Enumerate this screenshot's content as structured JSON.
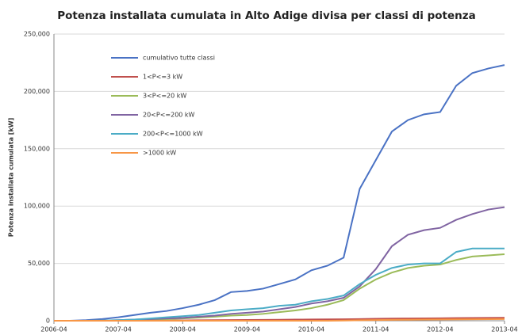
{
  "chart_data": {
    "type": "line",
    "title": "Potenza installata cumulata in Alto Adige divisa per classi di potenza",
    "y_label": "Potenza installata cumulata [kW]",
    "x": [
      "2006-04",
      "2006-07",
      "2006-10",
      "2007-01",
      "2007-04",
      "2007-07",
      "2007-10",
      "2008-01",
      "2008-04",
      "2008-07",
      "2008-10",
      "2009-01",
      "2009-04",
      "2009-07",
      "2009-10",
      "2010-01",
      "2010-04",
      "2010-07",
      "2010-10",
      "2011-01",
      "2011-04",
      "2011-07",
      "2011-10",
      "2012-01",
      "2012-04",
      "2012-07",
      "2012-10",
      "2013-01",
      "2013-04"
    ],
    "series": [
      {
        "name": "cumulativo tutte classi",
        "color": "#4a72c4",
        "values": [
          0,
          0,
          500,
          1500,
          3000,
          5000,
          7000,
          8500,
          11000,
          14000,
          18000,
          25000,
          26000,
          28000,
          32000,
          36000,
          44000,
          48000,
          55000,
          115000,
          140000,
          165000,
          175000,
          180000,
          182000,
          205000,
          216000,
          220000,
          223000
        ]
      },
      {
        "name": "1<P<=3 kW",
        "color": "#c0504d",
        "values": [
          0,
          0,
          0,
          20,
          50,
          100,
          150,
          200,
          300,
          400,
          500,
          600,
          700,
          800,
          900,
          1000,
          1100,
          1200,
          1300,
          1500,
          1700,
          1900,
          2000,
          2100,
          2200,
          2300,
          2400,
          2500,
          2600
        ]
      },
      {
        "name": "3<P<=20 kW",
        "color": "#9bbb59",
        "values": [
          0,
          0,
          0,
          100,
          300,
          600,
          1000,
          1500,
          2000,
          2800,
          3500,
          4500,
          5000,
          6000,
          7500,
          9000,
          11000,
          14000,
          18000,
          28000,
          36000,
          42000,
          46000,
          48000,
          49000,
          53000,
          56000,
          57000,
          58000
        ]
      },
      {
        "name": "20<P<=200 kW",
        "color": "#8064a2",
        "values": [
          0,
          0,
          0,
          200,
          500,
          1000,
          1500,
          2000,
          2500,
          3500,
          4500,
          6000,
          7000,
          8000,
          10000,
          12000,
          15000,
          17000,
          20000,
          30000,
          45000,
          65000,
          75000,
          79000,
          81000,
          88000,
          93000,
          97000,
          99000
        ]
      },
      {
        "name": "200<P<=1000 kW",
        "color": "#4bacc6",
        "values": [
          0,
          0,
          0,
          200,
          500,
          1000,
          2000,
          3000,
          4000,
          5000,
          7000,
          9000,
          10000,
          11000,
          13000,
          14000,
          17000,
          19000,
          22000,
          32000,
          40000,
          46000,
          49000,
          50000,
          50000,
          60000,
          63000,
          63000,
          63000
        ]
      },
      {
        "name": ">1000 kW",
        "color": "#f79646",
        "values": [
          0,
          0,
          0,
          0,
          0,
          0,
          0,
          0,
          0,
          0,
          0,
          0,
          0,
          0,
          0,
          0,
          0,
          0,
          200,
          400,
          600,
          800,
          900,
          1000,
          1100,
          1200,
          1300,
          1400,
          1500
        ]
      }
    ],
    "xticks": [
      "2006-04",
      "2007-04",
      "2008-04",
      "2009-04",
      "2010-04",
      "2011-04",
      "2012-04",
      "2013-04"
    ],
    "ylim": [
      0,
      250000
    ],
    "yticks": [
      {
        "value": 0,
        "label": "0"
      },
      {
        "value": 50000,
        "label": "50,000"
      },
      {
        "value": 100000,
        "label": "100,000"
      },
      {
        "value": 150000,
        "label": "150,000"
      },
      {
        "value": 200000,
        "label": "200,000"
      },
      {
        "value": 250000,
        "label": "250,000"
      }
    ],
    "grid": true,
    "legend": "upper left"
  }
}
